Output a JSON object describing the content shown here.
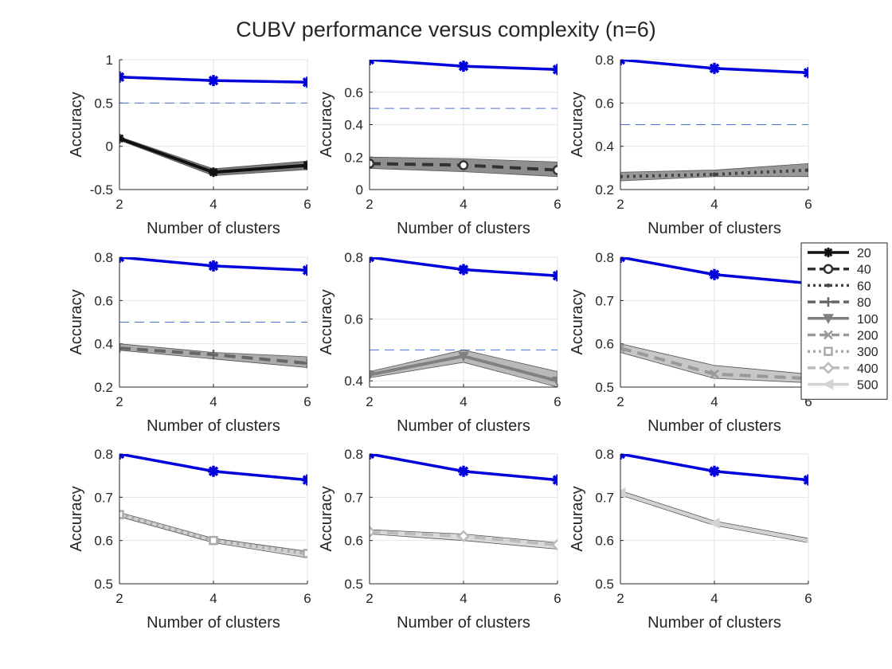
{
  "figure": {
    "title": "CUBV performance versus complexity (n=6)"
  },
  "colors": {
    "cubv": "#0000dd",
    "reference": "#4a6fd8",
    "grid": "#e6e6e6",
    "axis": "#262626"
  },
  "legend": {
    "placement": "right, middle row",
    "entries": [
      {
        "label": "20",
        "color": "#111111",
        "dash": "",
        "marker": "asterisk"
      },
      {
        "label": "40",
        "color": "#333333",
        "dash": "14,8",
        "marker": "circle"
      },
      {
        "label": "60",
        "color": "#444444",
        "dash": "3,5",
        "marker": "dot"
      },
      {
        "label": "80",
        "color": "#666666",
        "dash": "14,8",
        "marker": "plus"
      },
      {
        "label": "100",
        "color": "#808080",
        "dash": "",
        "marker": "triangle-down"
      },
      {
        "label": "200",
        "color": "#999999",
        "dash": "14,8",
        "marker": "x"
      },
      {
        "label": "300",
        "color": "#aaaaaa",
        "dash": "3,5",
        "marker": "square"
      },
      {
        "label": "400",
        "color": "#bbbbbb",
        "dash": "14,8",
        "marker": "diamond"
      },
      {
        "label": "500",
        "color": "#d2d2d2",
        "dash": "",
        "marker": "triangle-left"
      }
    ]
  },
  "chart_data": [
    {
      "type": "line",
      "xlabel": "Number of clusters",
      "ylabel": "Accuracy",
      "xlim": [
        2,
        6
      ],
      "ylim": [
        -0.5,
        1
      ],
      "xticks": [
        "2",
        "4",
        "6"
      ],
      "yticks": [
        "-0.5",
        "0",
        "0.5",
        "1"
      ],
      "grid": true,
      "reference": 0.5,
      "series": [
        {
          "name": "CUBV",
          "x": [
            2,
            4,
            6
          ],
          "values": [
            0.8,
            0.76,
            0.74
          ]
        },
        {
          "name": "20",
          "x": [
            2,
            4,
            6
          ],
          "values": [
            0.09,
            -0.3,
            -0.22
          ],
          "band": [
            [
              0.07,
              0.11
            ],
            [
              -0.34,
              -0.26
            ],
            [
              -0.27,
              -0.17
            ]
          ]
        }
      ]
    },
    {
      "type": "line",
      "xlabel": "Number of clusters",
      "ylabel": "Accuracy",
      "xlim": [
        2,
        6
      ],
      "ylim": [
        0,
        0.8
      ],
      "xticks": [
        "2",
        "4",
        "6"
      ],
      "yticks": [
        "0",
        "0.2",
        "0.4",
        "0.6"
      ],
      "grid": true,
      "reference": 0.5,
      "series": [
        {
          "name": "CUBV",
          "x": [
            2,
            4,
            6
          ],
          "values": [
            0.8,
            0.76,
            0.74
          ]
        },
        {
          "name": "40",
          "x": [
            2,
            4,
            6
          ],
          "values": [
            0.16,
            0.15,
            0.12
          ],
          "band": [
            [
              0.13,
              0.2
            ],
            [
              0.11,
              0.19
            ],
            [
              0.08,
              0.17
            ]
          ]
        }
      ]
    },
    {
      "type": "line",
      "xlabel": "Number of clusters",
      "ylabel": "Accuracy",
      "xlim": [
        2,
        6
      ],
      "ylim": [
        0.2,
        0.8
      ],
      "xticks": [
        "2",
        "4",
        "6"
      ],
      "yticks": [
        "0.2",
        "0.4",
        "0.6",
        "0.8"
      ],
      "grid": true,
      "reference": 0.5,
      "series": [
        {
          "name": "CUBV",
          "x": [
            2,
            4,
            6
          ],
          "values": [
            0.8,
            0.76,
            0.74
          ]
        },
        {
          "name": "60",
          "x": [
            2,
            4,
            6
          ],
          "values": [
            0.26,
            0.27,
            0.29
          ],
          "band": [
            [
              0.24,
              0.28
            ],
            [
              0.26,
              0.29
            ],
            [
              0.26,
              0.32
            ]
          ]
        }
      ]
    },
    {
      "type": "line",
      "xlabel": "Number of clusters",
      "ylabel": "Accuracy",
      "xlim": [
        2,
        6
      ],
      "ylim": [
        0.2,
        0.8
      ],
      "xticks": [
        "2",
        "4",
        "6"
      ],
      "yticks": [
        "0.2",
        "0.4",
        "0.6",
        "0.8"
      ],
      "grid": true,
      "reference": 0.5,
      "series": [
        {
          "name": "CUBV",
          "x": [
            2,
            4,
            6
          ],
          "values": [
            0.8,
            0.76,
            0.74
          ]
        },
        {
          "name": "80",
          "x": [
            2,
            4,
            6
          ],
          "values": [
            0.38,
            0.35,
            0.31
          ],
          "band": [
            [
              0.37,
              0.4
            ],
            [
              0.33,
              0.36
            ],
            [
              0.29,
              0.34
            ]
          ]
        }
      ]
    },
    {
      "type": "line",
      "xlabel": "Number of clusters",
      "ylabel": "Accuracy",
      "xlim": [
        2,
        6
      ],
      "ylim": [
        0.38,
        0.8
      ],
      "xticks": [
        "2",
        "4",
        "6"
      ],
      "yticks": [
        "0.4",
        "0.6",
        "0.8"
      ],
      "grid": true,
      "reference": 0.5,
      "series": [
        {
          "name": "CUBV",
          "x": [
            2,
            4,
            6
          ],
          "values": [
            0.8,
            0.76,
            0.74
          ]
        },
        {
          "name": "100",
          "x": [
            2,
            4,
            6
          ],
          "values": [
            0.42,
            0.48,
            0.4
          ],
          "band": [
            [
              0.41,
              0.43
            ],
            [
              0.46,
              0.5
            ],
            [
              0.38,
              0.43
            ]
          ]
        }
      ]
    },
    {
      "type": "line",
      "xlabel": "Number of clusters",
      "ylabel": "Accuracy",
      "xlim": [
        2,
        6
      ],
      "ylim": [
        0.5,
        0.8
      ],
      "xticks": [
        "2",
        "4",
        "6"
      ],
      "yticks": [
        "0.5",
        "0.6",
        "0.7",
        "0.8"
      ],
      "grid": true,
      "reference": null,
      "series": [
        {
          "name": "CUBV",
          "x": [
            2,
            4,
            6
          ],
          "values": [
            0.8,
            0.76,
            0.74
          ]
        },
        {
          "name": "200",
          "x": [
            2,
            4,
            6
          ],
          "values": [
            0.59,
            0.53,
            0.52
          ],
          "band": [
            [
              0.58,
              0.6
            ],
            [
              0.52,
              0.55
            ],
            [
              0.51,
              0.53
            ]
          ]
        }
      ]
    },
    {
      "type": "line",
      "xlabel": "Number of clusters",
      "ylabel": "Accuracy",
      "xlim": [
        2,
        6
      ],
      "ylim": [
        0.5,
        0.8
      ],
      "xticks": [
        "2",
        "4",
        "6"
      ],
      "yticks": [
        "0.5",
        "0.6",
        "0.7",
        "0.8"
      ],
      "grid": true,
      "reference": null,
      "series": [
        {
          "name": "CUBV",
          "x": [
            2,
            4,
            6
          ],
          "values": [
            0.8,
            0.76,
            0.74
          ]
        },
        {
          "name": "300",
          "x": [
            2,
            4,
            6
          ],
          "values": [
            0.66,
            0.6,
            0.57
          ],
          "band": [
            [
              0.655,
              0.665
            ],
            [
              0.595,
              0.605
            ],
            [
              0.56,
              0.575
            ]
          ]
        }
      ]
    },
    {
      "type": "line",
      "xlabel": "Number of clusters",
      "ylabel": "Accuracy",
      "xlim": [
        2,
        6
      ],
      "ylim": [
        0.5,
        0.8
      ],
      "xticks": [
        "2",
        "4",
        "6"
      ],
      "yticks": [
        "0.5",
        "0.6",
        "0.7",
        "0.8"
      ],
      "grid": true,
      "reference": null,
      "series": [
        {
          "name": "CUBV",
          "x": [
            2,
            4,
            6
          ],
          "values": [
            0.8,
            0.76,
            0.74
          ]
        },
        {
          "name": "400",
          "x": [
            2,
            4,
            6
          ],
          "values": [
            0.62,
            0.61,
            0.59
          ],
          "band": [
            [
              0.615,
              0.625
            ],
            [
              0.6,
              0.615
            ],
            [
              0.58,
              0.595
            ]
          ]
        }
      ]
    },
    {
      "type": "line",
      "xlabel": "Number of clusters",
      "ylabel": "Accuracy",
      "xlim": [
        2,
        6
      ],
      "ylim": [
        0.5,
        0.8
      ],
      "xticks": [
        "2",
        "4",
        "6"
      ],
      "yticks": [
        "0.5",
        "0.6",
        "0.7",
        "0.8"
      ],
      "grid": true,
      "reference": null,
      "series": [
        {
          "name": "CUBV",
          "x": [
            2,
            4,
            6
          ],
          "values": [
            0.8,
            0.76,
            0.74
          ]
        },
        {
          "name": "500",
          "x": [
            2,
            4,
            6
          ],
          "values": [
            0.71,
            0.64,
            0.6
          ],
          "band": [
            [
              0.705,
              0.715
            ],
            [
              0.635,
              0.645
            ],
            [
              0.595,
              0.605
            ]
          ]
        }
      ]
    }
  ]
}
